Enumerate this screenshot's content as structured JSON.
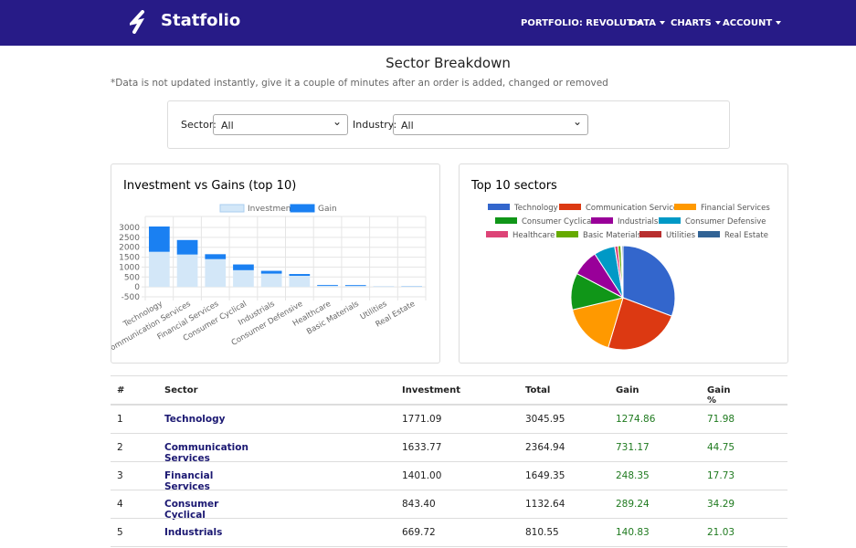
{
  "navbar": {
    "brand": "Statfolio",
    "menu": [
      "PORTFOLIO: REVOLUT",
      "DATA",
      "CHARTS",
      "ACCOUNT"
    ]
  },
  "page": {
    "title": "Sector Breakdown",
    "note": "*Data is not updated instantly, give it a couple of minutes after an order is added, changed or removed"
  },
  "filters": {
    "sector_label": "Sector:",
    "sector_value": "All",
    "industry_label": "Industry:",
    "industry_value": "All"
  },
  "chart_data": [
    {
      "type": "bar",
      "stacked": true,
      "title": "Investment vs Gains (top 10)",
      "categories": [
        "Technology",
        "Communication Services",
        "Financial Services",
        "Consumer Cyclical",
        "Industrials",
        "Consumer Defensive",
        "Healthcare",
        "Basic Materials",
        "Utilities",
        "Real Estate"
      ],
      "series": [
        {
          "name": "Investment",
          "color": "#d3e7f8",
          "values": [
            1771.09,
            1633.77,
            1401.0,
            843.4,
            669.72,
            560,
            60,
            50,
            20,
            30
          ]
        },
        {
          "name": "Gain",
          "color": "#1a80f2",
          "values": [
            1274.86,
            731.17,
            248.35,
            289.24,
            140.83,
            90,
            40,
            40,
            5,
            10
          ]
        }
      ],
      "ylim": [
        -500,
        3000
      ],
      "yticks": [
        -500,
        0,
        500,
        1000,
        1500,
        2000,
        2500,
        3000
      ],
      "grid": true
    },
    {
      "type": "pie",
      "title": "Top 10 sectors",
      "categories": [
        "Technology",
        "Communication Services",
        "Financial Services",
        "Consumer Cyclical",
        "Industrials",
        "Consumer Defensive",
        "Healthcare",
        "Basic Materials",
        "Utilities",
        "Real Estate"
      ],
      "values": [
        3045.95,
        2364.94,
        1649.35,
        1132.64,
        810.55,
        650,
        100,
        90,
        25,
        40
      ],
      "colors": [
        "#3366cc",
        "#dc3912",
        "#ff9900",
        "#109618",
        "#990099",
        "#0099c6",
        "#dd4477",
        "#66aa00",
        "#b82e2e",
        "#316395"
      ]
    }
  ],
  "table": {
    "headers": [
      "#",
      "Sector",
      "Investment",
      "Total",
      "Gain",
      "Gain %"
    ],
    "rows": [
      [
        "1",
        "Technology",
        "1771.09",
        "3045.95",
        "1274.86",
        "71.98"
      ],
      [
        "2",
        "Communication Services",
        "1633.77",
        "2364.94",
        "731.17",
        "44.75"
      ],
      [
        "3",
        "Financial Services",
        "1401.00",
        "1649.35",
        "248.35",
        "17.73"
      ],
      [
        "4",
        "Consumer Cyclical",
        "843.40",
        "1132.64",
        "289.24",
        "34.29"
      ],
      [
        "5",
        "Industrials",
        "669.72",
        "810.55",
        "140.83",
        "21.03"
      ]
    ]
  }
}
